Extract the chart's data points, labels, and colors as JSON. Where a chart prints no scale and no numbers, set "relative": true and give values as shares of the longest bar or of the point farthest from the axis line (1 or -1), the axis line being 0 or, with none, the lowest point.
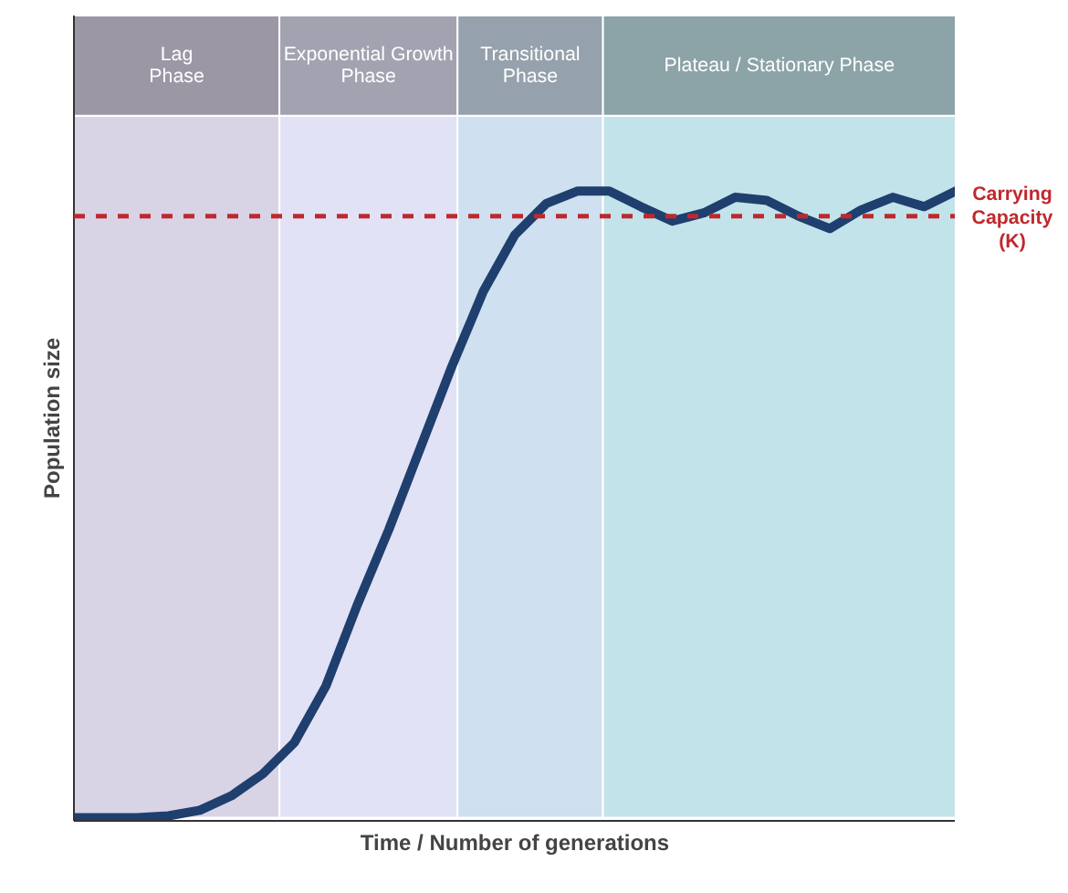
{
  "chart_data": {
    "type": "line",
    "relative": true,
    "xlabel": "Time / Number of generations",
    "ylabel": "Population size",
    "categories": [
      null,
      null,
      null,
      null,
      null,
      null,
      null,
      null,
      null,
      null,
      null,
      null,
      null,
      null,
      null,
      null,
      null,
      null,
      null,
      null,
      null,
      null,
      null,
      null,
      null,
      null,
      null,
      null,
      null
    ],
    "marker": "none",
    "line_style": "solid",
    "series": [
      {
        "color": "#1f3f6e",
        "values": [
          0,
          0,
          0,
          0.003,
          0.012,
          0.035,
          0.07,
          0.12,
          0.21,
          0.34,
          0.46,
          0.59,
          0.72,
          0.84,
          0.93,
          0.98,
          1.0,
          1.0,
          0.975,
          0.952,
          0.965,
          0.99,
          0.985,
          0.96,
          0.94,
          0.97,
          0.99,
          0.975,
          1.0
        ]
      }
    ],
    "ref_lines": [
      {
        "axis": "y",
        "value": 0.96,
        "label": "Carrying Capacity (K)",
        "color": "#c0282d",
        "line_style": "dashed"
      }
    ],
    "annotations": [
      "Lag Phase",
      "Exponential Growth Phase",
      "Transitional Phase",
      "Plateau / Stationary Phase"
    ]
  }
}
